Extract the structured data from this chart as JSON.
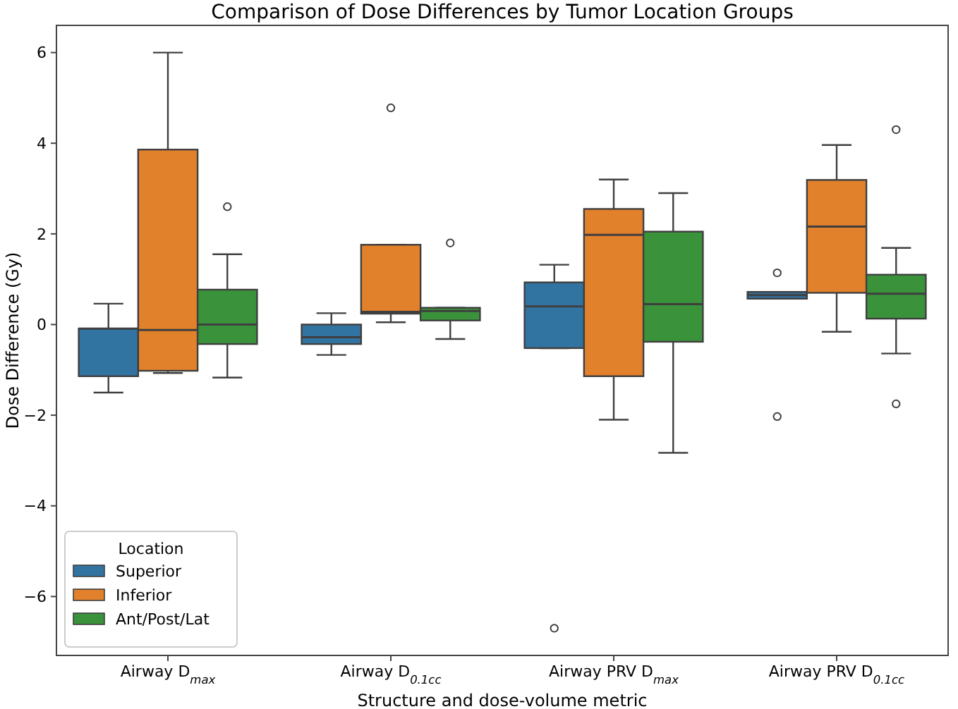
{
  "chart_data": {
    "type": "box",
    "title": "Comparison of Dose Differences by Tumor Location Groups",
    "xlabel": "Structure and dose-volume metric",
    "ylabel": "Dose Difference (Gy)",
    "legend_title": "Location",
    "legend": "bottom left",
    "grid": false,
    "categories": [
      "Airway D$_{max}$",
      "Airway D$_{0.1cc}$",
      "Airway PRV D$_{max}$",
      "Airway PRV D$_{0.1cc}$"
    ],
    "ylim": [
      -7.3,
      6.6
    ],
    "yticks": [
      {
        "value": -6,
        "label": "−6"
      },
      {
        "value": -4,
        "label": "−4"
      },
      {
        "value": -2,
        "label": "−2"
      },
      0,
      2,
      4,
      6
    ],
    "series": [
      {
        "name": "Superior",
        "color": "#3274a1",
        "boxes": [
          {
            "low": -1.5,
            "q1": -1.14,
            "median": -0.09,
            "q3": -0.09,
            "high": 0.46
          },
          {
            "low": -0.67,
            "q1": -0.43,
            "median": -0.28,
            "q3": 0.0,
            "high": 0.25
          },
          {
            "low": -0.52,
            "q1": -0.52,
            "median": 0.4,
            "q3": 0.93,
            "high": 1.32,
            "outliers": [
              -6.7
            ]
          },
          {
            "low": 0.57,
            "q1": 0.57,
            "median": 0.65,
            "q3": 0.72,
            "high": 0.72,
            "outliers": [
              1.14,
              -2.03
            ]
          }
        ]
      },
      {
        "name": "Inferior",
        "color": "#e1812c",
        "boxes": [
          {
            "low": -1.07,
            "q1": -1.02,
            "median": -0.12,
            "q3": 3.86,
            "high": 6.0
          },
          {
            "low": 0.05,
            "q1": 0.24,
            "median": 0.28,
            "q3": 1.76,
            "high": 1.76,
            "outliers": [
              4.78
            ]
          },
          {
            "low": -2.1,
            "q1": -1.14,
            "median": 1.98,
            "q3": 2.55,
            "high": 3.2
          },
          {
            "low": -0.16,
            "q1": 0.7,
            "median": 2.16,
            "q3": 3.19,
            "high": 3.96
          }
        ]
      },
      {
        "name": "Ant/Post/Lat",
        "color": "#3a923a",
        "boxes": [
          {
            "low": -1.17,
            "q1": -0.43,
            "median": 0.0,
            "q3": 0.77,
            "high": 1.55,
            "outliers": [
              2.6
            ]
          },
          {
            "low": -0.32,
            "q1": 0.09,
            "median": 0.3,
            "q3": 0.37,
            "high": 0.37,
            "outliers": [
              1.8
            ]
          },
          {
            "low": -2.83,
            "q1": -0.38,
            "median": 0.45,
            "q3": 2.05,
            "high": 2.9
          },
          {
            "low": -0.64,
            "q1": 0.13,
            "median": 0.68,
            "q3": 1.1,
            "high": 1.69,
            "outliers": [
              4.3,
              -1.75
            ]
          }
        ]
      }
    ]
  }
}
